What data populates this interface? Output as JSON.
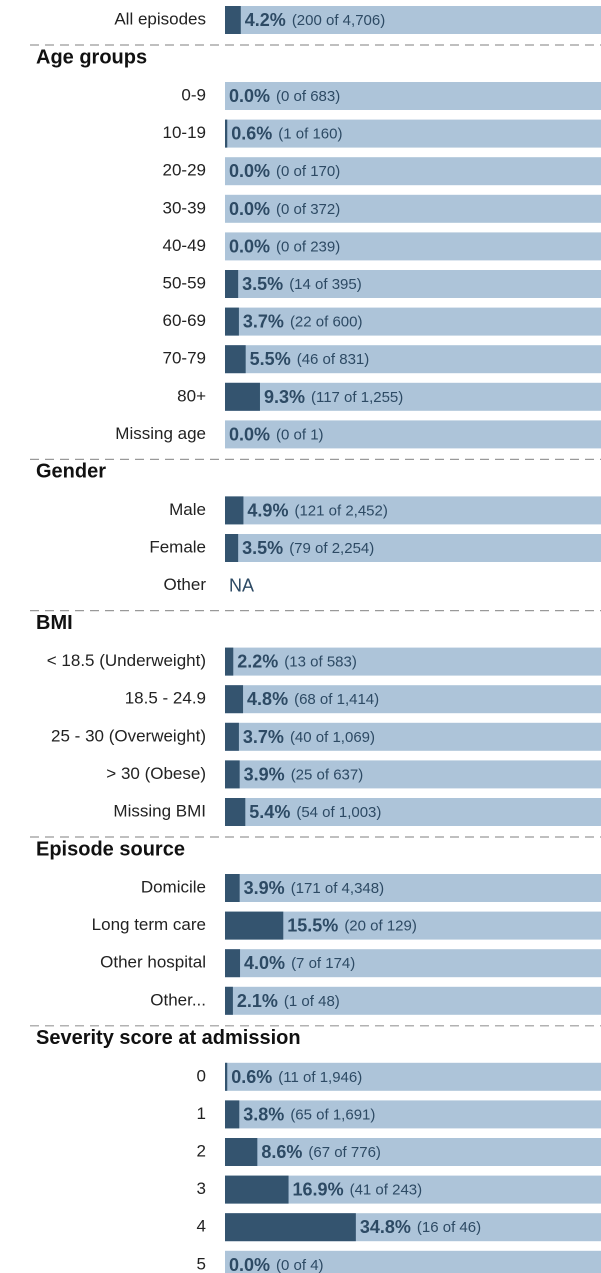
{
  "chart_data": [
    {
      "type": "bar",
      "categories": [
        "All episodes"
      ],
      "values": [
        4.2
      ],
      "value_labels": [
        "4.2%"
      ],
      "counts": [
        "(200 of 4,706)"
      ],
      "xlim": [
        0,
        100
      ],
      "color": "#34546f",
      "background": "#adc4d9"
    },
    {
      "type": "bar",
      "title": "Age groups",
      "categories": [
        "0-9",
        "10-19",
        "20-29",
        "30-39",
        "40-49",
        "50-59",
        "60-69",
        "70-79",
        "80+",
        "Missing age"
      ],
      "values": [
        0.0,
        0.6,
        0.0,
        0.0,
        0.0,
        3.5,
        3.7,
        5.5,
        9.3,
        0.0
      ],
      "value_labels": [
        "0.0%",
        "0.6%",
        "0.0%",
        "0.0%",
        "0.0%",
        "3.5%",
        "3.7%",
        "5.5%",
        "9.3%",
        "0.0%"
      ],
      "counts": [
        "(0 of 683)",
        "(1 of 160)",
        "(0 of 170)",
        "(0 of 372)",
        "(0 of 239)",
        "(14 of 395)",
        "(22 of 600)",
        "(46 of 831)",
        "(117 of 1,255)",
        "(0 of 1)"
      ],
      "xlim": [
        0,
        100
      ],
      "color": "#34546f",
      "background": "#adc4d9"
    },
    {
      "type": "bar",
      "title": "Gender",
      "categories": [
        "Male",
        "Female",
        "Other"
      ],
      "values": [
        4.9,
        3.5,
        null
      ],
      "value_labels": [
        "4.9%",
        "3.5%",
        "NA"
      ],
      "counts": [
        "(121 of 2,452)",
        "(79 of 2,254)",
        null
      ],
      "xlim": [
        0,
        100
      ],
      "color": "#34546f",
      "background": "#adc4d9"
    },
    {
      "type": "bar",
      "title": "BMI",
      "categories": [
        "< 18.5 (Underweight)",
        "18.5 - 24.9",
        "25 - 30 (Overweight)",
        "> 30 (Obese)",
        "Missing BMI"
      ],
      "values": [
        2.2,
        4.8,
        3.7,
        3.9,
        5.4
      ],
      "value_labels": [
        "2.2%",
        "4.8%",
        "3.7%",
        "3.9%",
        "5.4%"
      ],
      "counts": [
        "(13 of 583)",
        "(68 of 1,414)",
        "(40 of 1,069)",
        "(25 of 637)",
        "(54 of 1,003)"
      ],
      "xlim": [
        0,
        100
      ],
      "color": "#34546f",
      "background": "#adc4d9"
    },
    {
      "type": "bar",
      "title": "Episode source",
      "categories": [
        "Domicile",
        "Long term care",
        "Other hospital",
        "Other..."
      ],
      "values": [
        3.9,
        15.5,
        4.0,
        2.1
      ],
      "value_labels": [
        "3.9%",
        "15.5%",
        "4.0%",
        "2.1%"
      ],
      "counts": [
        "(171 of 4,348)",
        "(20 of 129)",
        "(7 of 174)",
        "(1 of 48)"
      ],
      "xlim": [
        0,
        100
      ],
      "color": "#34546f",
      "background": "#adc4d9"
    },
    {
      "type": "bar",
      "title": "Severity score at admission",
      "categories": [
        "0",
        "1",
        "2",
        "3",
        "4",
        "5"
      ],
      "values": [
        0.6,
        3.8,
        8.6,
        16.9,
        34.8,
        0.0
      ],
      "value_labels": [
        "0.6%",
        "3.8%",
        "8.6%",
        "16.9%",
        "34.8%",
        "0.0%"
      ],
      "counts": [
        "(11 of 1,946)",
        "(65 of 1,691)",
        "(67 of 776)",
        "(41 of 243)",
        "(16 of 46)",
        "(0 of 4)"
      ],
      "xlim": [
        0,
        100
      ],
      "color": "#34546f",
      "background": "#adc4d9"
    }
  ]
}
